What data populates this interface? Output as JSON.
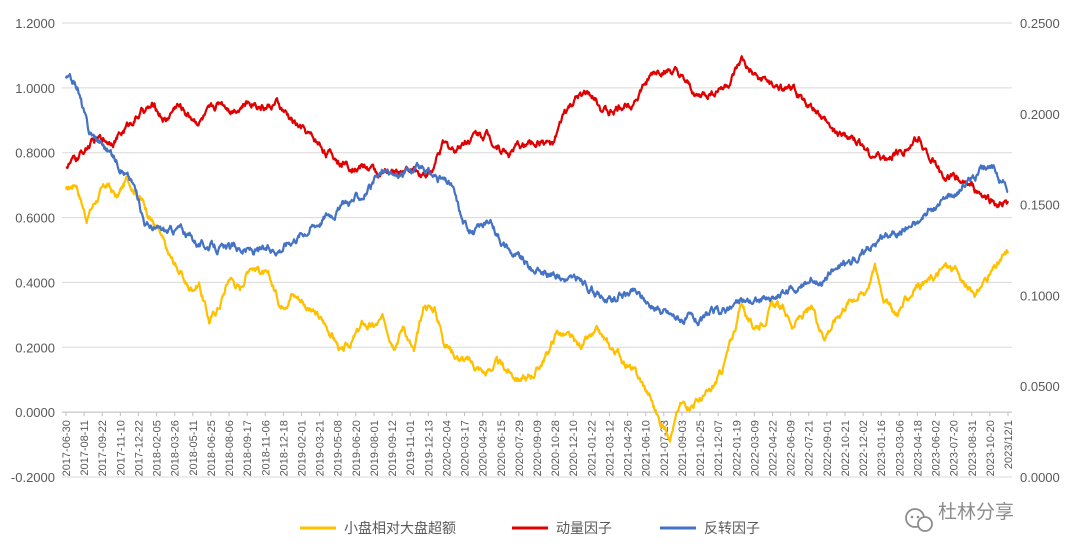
{
  "chart_data": {
    "type": "line",
    "title": "",
    "y_left": {
      "ylim": [
        -0.2,
        1.2
      ],
      "ticks": [
        "-0.2000",
        "0.0000",
        "0.2000",
        "0.4000",
        "0.6000",
        "0.8000",
        "1.0000",
        "1.2000"
      ]
    },
    "y_right": {
      "ylim": [
        0.0,
        0.25
      ],
      "ticks": [
        "0.0000",
        "0.0500",
        "0.1000",
        "0.1500",
        "0.2000",
        "0.2500"
      ]
    },
    "x_tick_labels": [
      "2017-06-30",
      "2017-08-11",
      "2017-09-22",
      "2017-11-10",
      "2017-12-22",
      "2018-02-05",
      "2018-03-26",
      "2018-05-11",
      "2018-06-25",
      "2018-08-06",
      "2018-09-17",
      "2018-11-06",
      "2018-12-18",
      "2019-02-01",
      "2019-03-21",
      "2019-05-08",
      "2019-06-20",
      "2019-08-01",
      "2019-09-12",
      "2019-11-01",
      "2019-12-13",
      "2020-02-04",
      "2020-03-17",
      "2020-04-29",
      "2020-06-15",
      "2020-07-29",
      "2020-09-09",
      "2020-10-28",
      "2020-12-10",
      "2021-01-22",
      "2021-03-12",
      "2021-04-26",
      "2021-06-10",
      "2021-07-23",
      "2021-09-03",
      "2021-10-25",
      "2021-12-07",
      "2022-01-19",
      "2022-03-09",
      "2022-04-22",
      "2022-06-09",
      "2022-07-21",
      "2022-09-01",
      "2022-10-21",
      "2022-12-02",
      "2023-01-16",
      "2023-03-06",
      "2023-04-18",
      "2023-06-02",
      "2023-07-20",
      "2023-08-31",
      "2023-10-20",
      "2023/12/1"
    ],
    "grid": true,
    "legend_position": "bottom",
    "series": [
      {
        "name": "小盘相对大盘超额",
        "axis": "left",
        "color": "#FFC000",
        "values": [
          0.68,
          0.71,
          0.6,
          0.66,
          0.7,
          0.66,
          0.72,
          0.68,
          0.62,
          0.56,
          0.48,
          0.44,
          0.38,
          0.4,
          0.28,
          0.33,
          0.42,
          0.38,
          0.46,
          0.44,
          0.4,
          0.33,
          0.37,
          0.35,
          0.31,
          0.28,
          0.24,
          0.18,
          0.22,
          0.27,
          0.26,
          0.28,
          0.22,
          0.27,
          0.18,
          0.33,
          0.32,
          0.22,
          0.18,
          0.16,
          0.14,
          0.12,
          0.15,
          0.13,
          0.11,
          0.1,
          0.13,
          0.18,
          0.25,
          0.23,
          0.2,
          0.22,
          0.24,
          0.2,
          0.18,
          0.14,
          0.1,
          0.05,
          -0.03,
          -0.06,
          0.02,
          0.03,
          0.04,
          0.06,
          0.12,
          0.22,
          0.34,
          0.26,
          0.28,
          0.33,
          0.32,
          0.27,
          0.3,
          0.31,
          0.24,
          0.28,
          0.33,
          0.36,
          0.37,
          0.45,
          0.35,
          0.3,
          0.34,
          0.39,
          0.4,
          0.42,
          0.45,
          0.43,
          0.38,
          0.37,
          0.42,
          0.45,
          0.49
        ]
      },
      {
        "name": "动量因子",
        "axis": "left",
        "color": "#E00000",
        "values": [
          0.76,
          0.78,
          0.82,
          0.84,
          0.84,
          0.86,
          0.9,
          0.93,
          0.94,
          0.9,
          0.95,
          0.92,
          0.9,
          0.92,
          0.96,
          0.94,
          0.95,
          0.96,
          0.94,
          0.95,
          0.91,
          0.88,
          0.85,
          0.82,
          0.79,
          0.77,
          0.76,
          0.76,
          0.74,
          0.73,
          0.74,
          0.75,
          0.74,
          0.74,
          0.82,
          0.81,
          0.84,
          0.86,
          0.86,
          0.82,
          0.8,
          0.82,
          0.83,
          0.84,
          0.82,
          0.92,
          0.96,
          0.98,
          0.95,
          0.92,
          0.94,
          0.96,
          1.0,
          1.04,
          1.06,
          1.04,
          1.0,
          0.97,
          0.98,
          1.0,
          1.02,
          1.08,
          1.03,
          1.02,
          1.0,
          0.99,
          0.98,
          0.94,
          0.92,
          0.87,
          0.85,
          0.84,
          0.82,
          0.79,
          0.78,
          0.8,
          0.82,
          0.84,
          0.79,
          0.74,
          0.72,
          0.71,
          0.68,
          0.66,
          0.64,
          0.64
        ]
      },
      {
        "name": "反转因子",
        "axis": "right",
        "color": "#4472C4",
        "values": [
          0.22,
          0.215,
          0.19,
          0.185,
          0.178,
          0.17,
          0.16,
          0.14,
          0.136,
          0.135,
          0.137,
          0.132,
          0.128,
          0.127,
          0.125,
          0.126,
          0.125,
          0.124,
          0.125,
          0.127,
          0.132,
          0.136,
          0.14,
          0.145,
          0.148,
          0.152,
          0.155,
          0.16,
          0.168,
          0.165,
          0.168,
          0.17,
          0.167,
          0.164,
          0.16,
          0.14,
          0.135,
          0.14,
          0.135,
          0.125,
          0.12,
          0.115,
          0.113,
          0.112,
          0.11,
          0.108,
          0.105,
          0.1,
          0.097,
          0.1,
          0.102,
          0.098,
          0.092,
          0.09,
          0.088,
          0.087,
          0.085,
          0.09,
          0.092,
          0.095,
          0.097,
          0.098,
          0.097,
          0.1,
          0.103,
          0.106,
          0.108,
          0.11,
          0.115,
          0.118,
          0.122,
          0.128,
          0.132,
          0.135,
          0.138,
          0.14,
          0.145,
          0.15,
          0.155,
          0.16,
          0.165,
          0.17,
          0.168,
          0.158
        ]
      }
    ]
  },
  "watermark": {
    "text": "杜林分享",
    "icon": "wechat-icon"
  }
}
